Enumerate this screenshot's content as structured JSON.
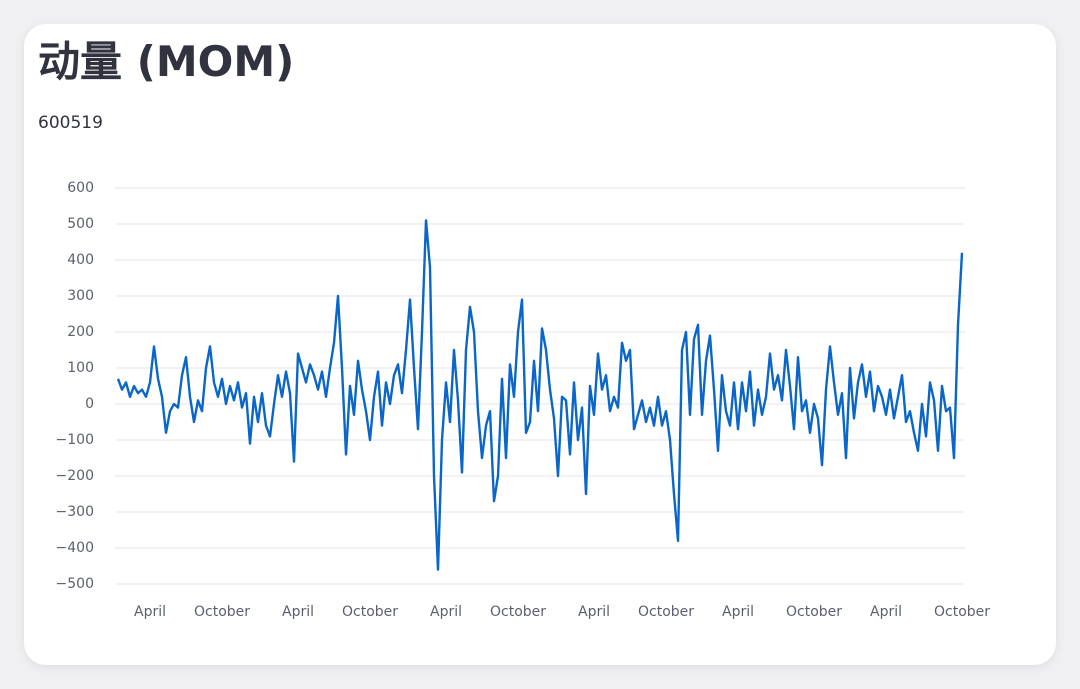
{
  "chart_data": {
    "type": "line",
    "title": "动量 (MOM)",
    "subtitle": "600519",
    "color": "#0a66c8",
    "grid": true,
    "ylim": [
      -500,
      600
    ],
    "yticks": [
      {
        "value": -500,
        "label": "−500"
      },
      {
        "value": -400,
        "label": "−400"
      },
      {
        "value": -300,
        "label": "−300"
      },
      {
        "value": -200,
        "label": "−200"
      },
      {
        "value": -100,
        "label": "−100"
      },
      0,
      100,
      200,
      300,
      400,
      500,
      600
    ],
    "categories": [
      null,
      null,
      null,
      null,
      null,
      null,
      null,
      null,
      "April",
      null,
      null,
      null,
      null,
      null,
      null,
      null,
      null,
      null,
      null,
      null,
      null,
      null,
      null,
      null,
      null,
      null,
      "October",
      null,
      null,
      null,
      null,
      null,
      null,
      null,
      null,
      null,
      null,
      null,
      null,
      null,
      null,
      null,
      null,
      null,
      null,
      "April",
      null,
      null,
      null,
      null,
      null,
      null,
      null,
      null,
      null,
      null,
      null,
      null,
      null,
      null,
      null,
      null,
      null,
      "October",
      null,
      null,
      null,
      null,
      null,
      null,
      null,
      null,
      null,
      null,
      null,
      null,
      null,
      null,
      null,
      null,
      null,
      null,
      "April",
      null,
      null,
      null,
      null,
      null,
      null,
      null,
      null,
      null,
      null,
      null,
      null,
      null,
      null,
      null,
      null,
      null,
      "October",
      null,
      null,
      null,
      null,
      null,
      null,
      null,
      null,
      null,
      null,
      null,
      null,
      null,
      null,
      null,
      null,
      null,
      null,
      "April",
      null,
      null,
      null,
      null,
      null,
      null,
      null,
      null,
      null,
      null,
      null,
      null,
      null,
      null,
      null,
      null,
      null,
      "October",
      null,
      null,
      null,
      null,
      null,
      null,
      null,
      null,
      null,
      null,
      null,
      null,
      null,
      null,
      null,
      null,
      null,
      "April",
      null,
      null,
      null,
      null,
      null,
      null,
      null,
      null,
      null,
      null,
      null,
      null,
      null,
      null,
      null,
      null,
      null,
      null,
      "October",
      null,
      null,
      null,
      null,
      null,
      null,
      null,
      null,
      null,
      null,
      null,
      null,
      null,
      null,
      null,
      null,
      null,
      "April",
      null,
      null,
      null,
      null,
      null,
      null,
      null,
      null,
      null,
      null,
      null,
      null,
      null,
      null,
      null,
      null,
      null,
      null,
      "October"
    ],
    "values": [
      70,
      40,
      60,
      20,
      50,
      30,
      40,
      20,
      60,
      160,
      70,
      20,
      -80,
      -20,
      0,
      -10,
      80,
      130,
      20,
      -50,
      10,
      -20,
      100,
      160,
      60,
      20,
      70,
      0,
      50,
      10,
      60,
      -10,
      30,
      -110,
      20,
      -50,
      30,
      -60,
      -90,
      0,
      80,
      20,
      90,
      30,
      -160,
      140,
      100,
      60,
      110,
      80,
      40,
      90,
      20,
      100,
      170,
      300,
      100,
      -140,
      50,
      -30,
      120,
      40,
      -20,
      -100,
      20,
      90,
      -60,
      60,
      0,
      80,
      110,
      30,
      150,
      290,
      100,
      -70,
      200,
      510,
      380,
      -200,
      -460,
      -100,
      60,
      -50,
      150,
      10,
      -190,
      150,
      270,
      200,
      -20,
      -150,
      -60,
      -20,
      -270,
      -200,
      70,
      -150,
      110,
      20,
      200,
      290,
      -80,
      -50,
      120,
      -20,
      210,
      150,
      40,
      -40,
      -200,
      20,
      10,
      -140,
      60,
      -100,
      -10,
      -250,
      50,
      -30,
      140,
      40,
      80,
      -20,
      20,
      -10,
      170,
      120,
      150,
      -70,
      -30,
      10,
      -50,
      -10,
      -60,
      20,
      -60,
      -20,
      -100,
      -250,
      -380,
      150,
      200,
      -30,
      180,
      220,
      -30,
      120,
      190,
      40,
      -130,
      80,
      -20,
      -60,
      60,
      -70,
      60,
      -20,
      90,
      -60,
      40,
      -30,
      20,
      140,
      40,
      80,
      10,
      150,
      50,
      -70,
      130,
      -20,
      10,
      -80,
      0,
      -40,
      -170,
      40,
      160,
      60,
      -30,
      30,
      -150,
      100,
      -40,
      60,
      110,
      20,
      90,
      -20,
      50,
      20,
      -30,
      40,
      -40,
      20,
      80,
      -50,
      -20,
      -80,
      -130,
      0,
      -90,
      60,
      10,
      -130,
      50,
      -20,
      -10,
      -150,
      220,
      420
    ]
  }
}
